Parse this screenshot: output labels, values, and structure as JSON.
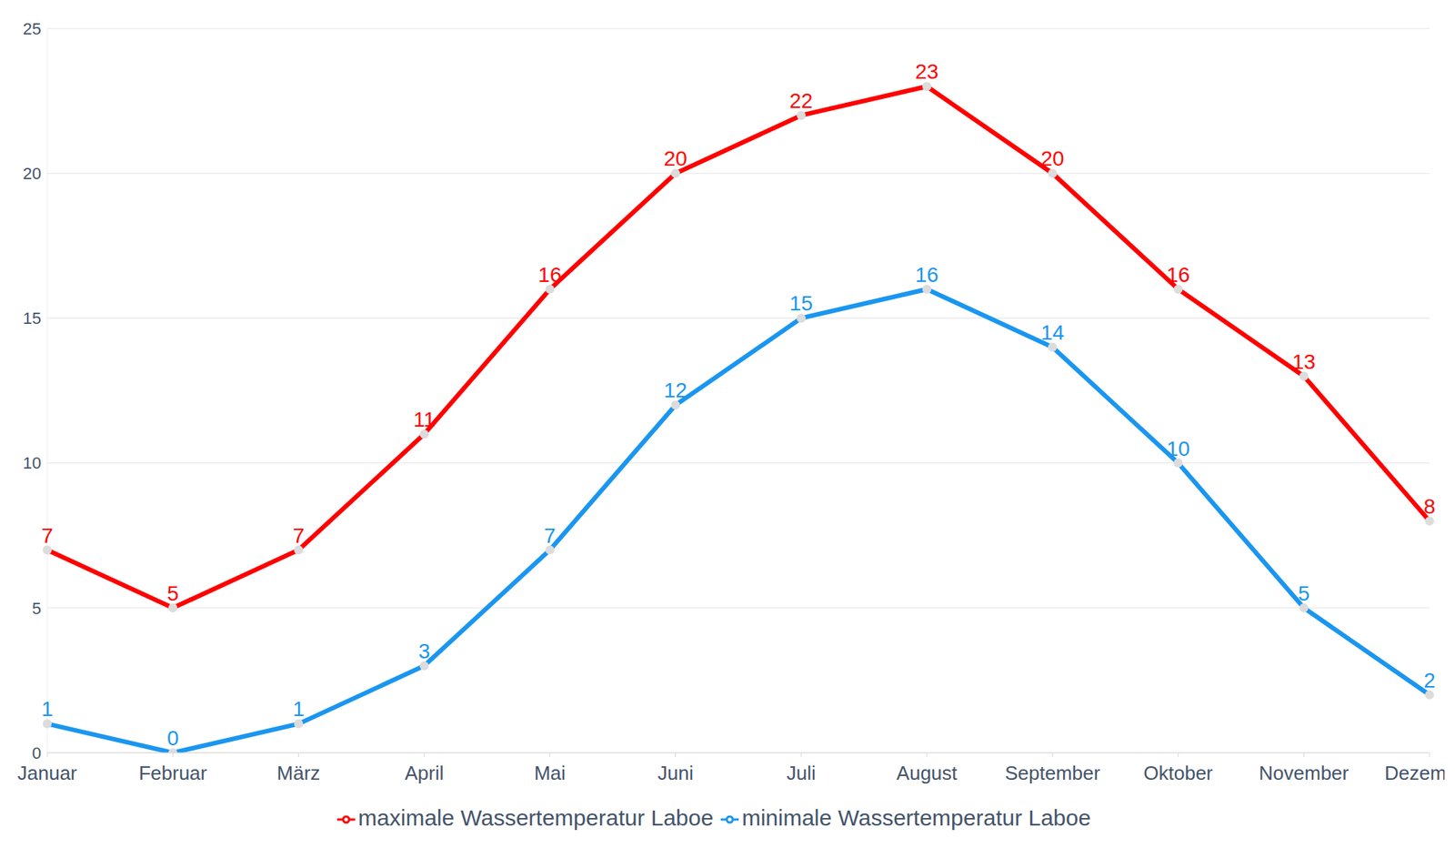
{
  "chart_data": {
    "type": "line",
    "categories": [
      "Januar",
      "Februar",
      "März",
      "April",
      "Mai",
      "Juni",
      "Juli",
      "August",
      "September",
      "Oktober",
      "November",
      "Dezember"
    ],
    "series": [
      {
        "name": "minimale Wassertemperatur Laboe",
        "color": "#1a96f0",
        "values": [
          1,
          0,
          1,
          3,
          7,
          12,
          15,
          16,
          14,
          10,
          5,
          2
        ],
        "marker": "circle",
        "line_style": "solid"
      },
      {
        "name": "maximale Wassertemperatur Laboe",
        "color": "#ff0000",
        "values": [
          7,
          5,
          7,
          11,
          16,
          20,
          22,
          23,
          20,
          16,
          13,
          8
        ],
        "marker": "circle",
        "line_style": "solid"
      }
    ],
    "ylim": [
      0,
      25
    ],
    "yticks": [
      0,
      5,
      10,
      15,
      20,
      25
    ],
    "grid": true,
    "legend": "bottom",
    "data_labels": true
  }
}
